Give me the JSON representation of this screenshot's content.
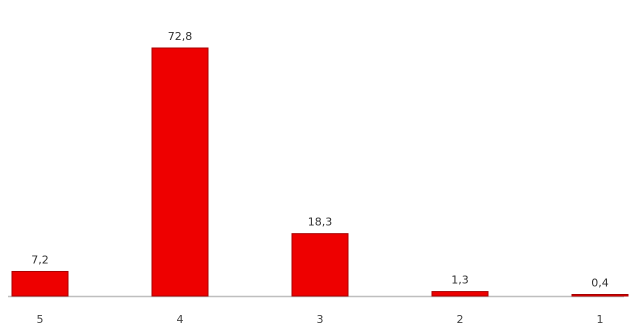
{
  "chart_data": {
    "type": "bar",
    "categories": [
      "5",
      "4",
      "3",
      "2",
      "1"
    ],
    "values": [
      7.2,
      72.8,
      18.3,
      1.3,
      0.4
    ],
    "value_labels": [
      "7,2",
      "72,8",
      "18,3",
      "1,3",
      "0,4"
    ],
    "title": "",
    "xlabel": "",
    "ylabel": "",
    "ylim": [
      0,
      72.8
    ],
    "grid": false,
    "legend": "none",
    "colors": {
      "bar_fill": "#ee0000",
      "bar_stroke": "#a80000",
      "axis": "#bfbfbf"
    }
  }
}
